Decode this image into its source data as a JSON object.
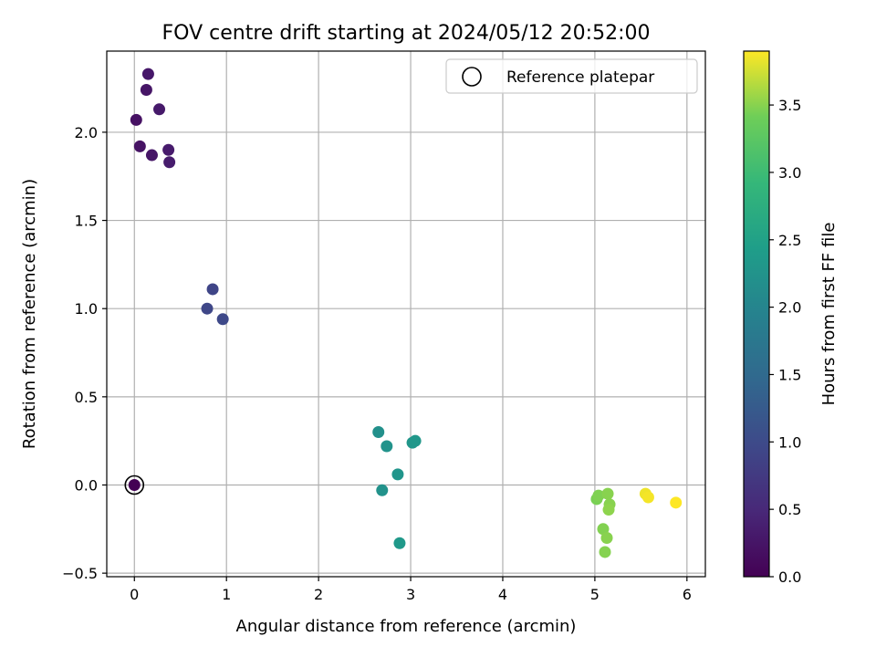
{
  "chart_data": {
    "type": "scatter",
    "title": "FOV centre drift starting at 2024/05/12 20:52:00",
    "xlabel": "Angular distance from reference (arcmin)",
    "ylabel": "Rotation from reference (arcmin)",
    "xlim": [
      -0.3,
      6.2
    ],
    "ylim": [
      -0.52,
      2.46
    ],
    "x_ticks": [
      0,
      1,
      2,
      3,
      4,
      5,
      6
    ],
    "x_tick_labels": [
      "0",
      "1",
      "2",
      "3",
      "4",
      "5",
      "6"
    ],
    "y_ticks": [
      -0.5,
      0.0,
      0.5,
      1.0,
      1.5,
      2.0
    ],
    "y_tick_labels": [
      "−0.5",
      "0.0",
      "0.5",
      "1.0",
      "1.5",
      "2.0"
    ],
    "grid": true,
    "legend": {
      "placement": "top-right",
      "entries": [
        {
          "label": "Reference platepar",
          "marker": "open-circle"
        }
      ]
    },
    "colorbar": {
      "label": "Hours from first FF file",
      "colormap": "viridis",
      "range": [
        0.0,
        3.9
      ],
      "ticks": [
        0.0,
        0.5,
        1.0,
        1.5,
        2.0,
        2.5,
        3.0,
        3.5
      ],
      "tick_labels": [
        "0.0",
        "0.5",
        "1.0",
        "1.5",
        "2.0",
        "2.5",
        "3.0",
        "3.5"
      ]
    },
    "reference_point": {
      "x": 0.0,
      "y": 0.0
    },
    "points": [
      {
        "x": 0.0,
        "y": 0.0,
        "hours": 0.0
      },
      {
        "x": 0.15,
        "y": 2.33,
        "hours": 0.28
      },
      {
        "x": 0.13,
        "y": 2.24,
        "hours": 0.25
      },
      {
        "x": 0.27,
        "y": 2.13,
        "hours": 0.3
      },
      {
        "x": 0.02,
        "y": 2.07,
        "hours": 0.2
      },
      {
        "x": 0.06,
        "y": 1.92,
        "hours": 0.22
      },
      {
        "x": 0.19,
        "y": 1.87,
        "hours": 0.26
      },
      {
        "x": 0.37,
        "y": 1.9,
        "hours": 0.32
      },
      {
        "x": 0.38,
        "y": 1.83,
        "hours": 0.34
      },
      {
        "x": 0.85,
        "y": 1.11,
        "hours": 0.92
      },
      {
        "x": 0.79,
        "y": 1.0,
        "hours": 0.95
      },
      {
        "x": 0.96,
        "y": 0.94,
        "hours": 0.98
      },
      {
        "x": 2.65,
        "y": 0.3,
        "hours": 2.2
      },
      {
        "x": 2.74,
        "y": 0.22,
        "hours": 2.25
      },
      {
        "x": 3.02,
        "y": 0.24,
        "hours": 2.3
      },
      {
        "x": 3.05,
        "y": 0.25,
        "hours": 2.32
      },
      {
        "x": 2.86,
        "y": 0.06,
        "hours": 2.28
      },
      {
        "x": 2.69,
        "y": -0.03,
        "hours": 2.22
      },
      {
        "x": 2.88,
        "y": -0.33,
        "hours": 2.35
      },
      {
        "x": 5.02,
        "y": -0.08,
        "hours": 3.45
      },
      {
        "x": 5.04,
        "y": -0.06,
        "hours": 3.47
      },
      {
        "x": 5.14,
        "y": -0.05,
        "hours": 3.5
      },
      {
        "x": 5.16,
        "y": -0.11,
        "hours": 3.5
      },
      {
        "x": 5.15,
        "y": -0.14,
        "hours": 3.52
      },
      {
        "x": 5.09,
        "y": -0.25,
        "hours": 3.48
      },
      {
        "x": 5.13,
        "y": -0.3,
        "hours": 3.5
      },
      {
        "x": 5.11,
        "y": -0.38,
        "hours": 3.49
      },
      {
        "x": 5.55,
        "y": -0.05,
        "hours": 3.85
      },
      {
        "x": 5.58,
        "y": -0.07,
        "hours": 3.87
      },
      {
        "x": 5.88,
        "y": -0.1,
        "hours": 3.9
      }
    ]
  }
}
